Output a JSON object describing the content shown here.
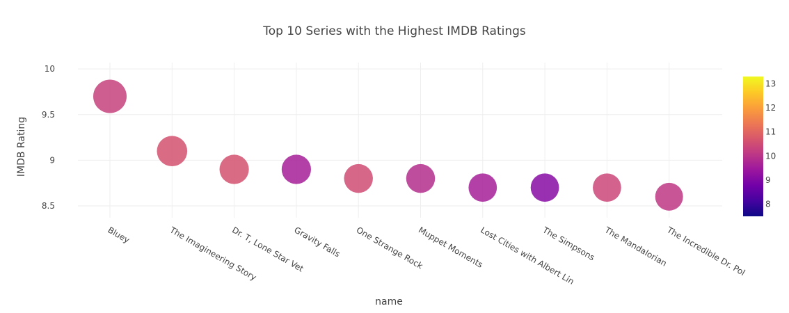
{
  "chart_data": {
    "type": "scatter",
    "title": "Top 10 Series with the Highest IMDB Ratings",
    "xlabel": "name",
    "ylabel": "IMDB Rating",
    "ylim": [
      8.37,
      10.07
    ],
    "yticks": [
      "8.5",
      "9",
      "9.5",
      "10"
    ],
    "ytick_values": [
      8.5,
      9.0,
      9.5,
      10.0
    ],
    "grid": true,
    "colorbar": {
      "range": [
        7.5,
        13.3
      ],
      "ticks": [
        "8",
        "9",
        "10",
        "11",
        "12",
        "13"
      ],
      "tick_values": [
        8,
        9,
        10,
        11,
        12,
        13
      ]
    },
    "points": [
      {
        "name": "Bluey",
        "rating": 9.7,
        "color_value": 10.3
      },
      {
        "name": "The Imagineering Story",
        "rating": 9.1,
        "color_value": 10.6
      },
      {
        "name": "Dr. T, Lone Star Vet",
        "rating": 8.9,
        "color_value": 10.6
      },
      {
        "name": "Gravity Falls",
        "rating": 8.9,
        "color_value": 9.6
      },
      {
        "name": "One Strange Rock",
        "rating": 8.8,
        "color_value": 10.5
      },
      {
        "name": "Muppet Moments",
        "rating": 8.8,
        "color_value": 9.9
      },
      {
        "name": "Lost Cities with Albert Lin",
        "rating": 8.7,
        "color_value": 9.6
      },
      {
        "name": "The Simpsons",
        "rating": 8.7,
        "color_value": 9.1
      },
      {
        "name": "The Mandalorian",
        "rating": 8.7,
        "color_value": 10.4
      },
      {
        "name": "The Incredible Dr. Pol",
        "rating": 8.6,
        "color_value": 10.1
      }
    ]
  }
}
